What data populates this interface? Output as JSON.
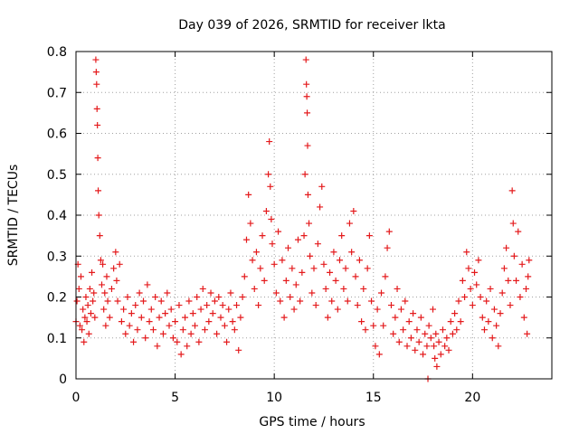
{
  "chart_data": {
    "type": "scatter",
    "title": "Day 039 of 2026, SRMTID for receiver lkta",
    "xlabel": "GPS time / hours",
    "ylabel": "SRMTID / TECUs",
    "xlim": [
      0,
      24
    ],
    "ylim": [
      0,
      0.8
    ],
    "xticks": [
      0,
      5,
      10,
      15,
      20
    ],
    "xtick_labels": [
      "0",
      "5",
      "10",
      "15",
      "20"
    ],
    "yticks": [
      0,
      0.1,
      0.2,
      0.3,
      0.4,
      0.5,
      0.6,
      0.7,
      0.8
    ],
    "ytick_labels": [
      "0",
      "0.1",
      "0.2",
      "0.3",
      "0.4",
      "0.5",
      "0.6",
      "0.7",
      "0.8"
    ],
    "grid": true,
    "marker": "+",
    "color": "#e41a1c",
    "series": [
      {
        "name": "SRMTID",
        "points": [
          [
            0.0,
            0.14
          ],
          [
            0.05,
            0.19
          ],
          [
            0.1,
            0.28
          ],
          [
            0.15,
            0.22
          ],
          [
            0.2,
            0.13
          ],
          [
            0.25,
            0.25
          ],
          [
            0.3,
            0.12
          ],
          [
            0.35,
            0.17
          ],
          [
            0.4,
            0.09
          ],
          [
            0.45,
            0.15
          ],
          [
            0.5,
            0.2
          ],
          [
            0.55,
            0.14
          ],
          [
            0.6,
            0.18
          ],
          [
            0.65,
            0.11
          ],
          [
            0.7,
            0.22
          ],
          [
            0.75,
            0.16
          ],
          [
            0.8,
            0.26
          ],
          [
            0.85,
            0.19
          ],
          [
            0.9,
            0.21
          ],
          [
            0.95,
            0.15
          ],
          [
            1.0,
            0.78
          ],
          [
            1.02,
            0.75
          ],
          [
            1.04,
            0.72
          ],
          [
            1.06,
            0.66
          ],
          [
            1.08,
            0.62
          ],
          [
            1.1,
            0.54
          ],
          [
            1.12,
            0.46
          ],
          [
            1.15,
            0.4
          ],
          [
            1.2,
            0.35
          ],
          [
            1.25,
            0.29
          ],
          [
            1.3,
            0.23
          ],
          [
            1.35,
            0.28
          ],
          [
            1.4,
            0.17
          ],
          [
            1.45,
            0.21
          ],
          [
            1.5,
            0.13
          ],
          [
            1.55,
            0.25
          ],
          [
            1.6,
            0.19
          ],
          [
            1.7,
            0.15
          ],
          [
            1.8,
            0.22
          ],
          [
            1.9,
            0.27
          ],
          [
            2.0,
            0.31
          ],
          [
            2.05,
            0.24
          ],
          [
            2.1,
            0.19
          ],
          [
            2.2,
            0.28
          ],
          [
            2.3,
            0.14
          ],
          [
            2.4,
            0.17
          ],
          [
            2.5,
            0.11
          ],
          [
            2.6,
            0.2
          ],
          [
            2.7,
            0.13
          ],
          [
            2.8,
            0.16
          ],
          [
            2.9,
            0.09
          ],
          [
            3.0,
            0.18
          ],
          [
            3.1,
            0.12
          ],
          [
            3.2,
            0.21
          ],
          [
            3.3,
            0.15
          ],
          [
            3.4,
            0.19
          ],
          [
            3.5,
            0.1
          ],
          [
            3.6,
            0.23
          ],
          [
            3.7,
            0.14
          ],
          [
            3.8,
            0.17
          ],
          [
            3.9,
            0.12
          ],
          [
            4.0,
            0.2
          ],
          [
            4.1,
            0.08
          ],
          [
            4.2,
            0.15
          ],
          [
            4.3,
            0.19
          ],
          [
            4.4,
            0.11
          ],
          [
            4.5,
            0.16
          ],
          [
            4.6,
            0.21
          ],
          [
            4.7,
            0.13
          ],
          [
            4.8,
            0.17
          ],
          [
            4.9,
            0.1
          ],
          [
            5.0,
            0.14
          ],
          [
            5.1,
            0.09
          ],
          [
            5.2,
            0.18
          ],
          [
            5.3,
            0.06
          ],
          [
            5.4,
            0.12
          ],
          [
            5.5,
            0.15
          ],
          [
            5.6,
            0.08
          ],
          [
            5.7,
            0.19
          ],
          [
            5.8,
            0.11
          ],
          [
            5.9,
            0.16
          ],
          [
            6.0,
            0.13
          ],
          [
            6.1,
            0.2
          ],
          [
            6.2,
            0.09
          ],
          [
            6.3,
            0.17
          ],
          [
            6.4,
            0.22
          ],
          [
            6.5,
            0.12
          ],
          [
            6.6,
            0.18
          ],
          [
            6.7,
            0.14
          ],
          [
            6.8,
            0.21
          ],
          [
            6.9,
            0.16
          ],
          [
            7.0,
            0.19
          ],
          [
            7.1,
            0.11
          ],
          [
            7.2,
            0.2
          ],
          [
            7.3,
            0.15
          ],
          [
            7.4,
            0.18
          ],
          [
            7.5,
            0.13
          ],
          [
            7.6,
            0.09
          ],
          [
            7.7,
            0.17
          ],
          [
            7.8,
            0.21
          ],
          [
            7.9,
            0.14
          ],
          [
            8.0,
            0.12
          ],
          [
            8.1,
            0.18
          ],
          [
            8.2,
            0.07
          ],
          [
            8.3,
            0.15
          ],
          [
            8.4,
            0.2
          ],
          [
            8.5,
            0.25
          ],
          [
            8.6,
            0.34
          ],
          [
            8.7,
            0.45
          ],
          [
            8.8,
            0.38
          ],
          [
            8.9,
            0.29
          ],
          [
            9.0,
            0.22
          ],
          [
            9.1,
            0.31
          ],
          [
            9.2,
            0.18
          ],
          [
            9.3,
            0.27
          ],
          [
            9.4,
            0.35
          ],
          [
            9.5,
            0.24
          ],
          [
            9.6,
            0.41
          ],
          [
            9.7,
            0.5
          ],
          [
            9.75,
            0.58
          ],
          [
            9.8,
            0.47
          ],
          [
            9.85,
            0.39
          ],
          [
            9.9,
            0.33
          ],
          [
            10.0,
            0.28
          ],
          [
            10.1,
            0.21
          ],
          [
            10.2,
            0.36
          ],
          [
            10.3,
            0.19
          ],
          [
            10.4,
            0.29
          ],
          [
            10.5,
            0.15
          ],
          [
            10.6,
            0.24
          ],
          [
            10.7,
            0.32
          ],
          [
            10.8,
            0.2
          ],
          [
            10.9,
            0.27
          ],
          [
            11.0,
            0.17
          ],
          [
            11.1,
            0.23
          ],
          [
            11.2,
            0.34
          ],
          [
            11.3,
            0.19
          ],
          [
            11.4,
            0.26
          ],
          [
            11.5,
            0.35
          ],
          [
            11.55,
            0.5
          ],
          [
            11.6,
            0.78
          ],
          [
            11.62,
            0.72
          ],
          [
            11.64,
            0.69
          ],
          [
            11.66,
            0.65
          ],
          [
            11.68,
            0.57
          ],
          [
            11.7,
            0.45
          ],
          [
            11.75,
            0.38
          ],
          [
            11.8,
            0.3
          ],
          [
            11.9,
            0.21
          ],
          [
            12.0,
            0.27
          ],
          [
            12.1,
            0.18
          ],
          [
            12.2,
            0.33
          ],
          [
            12.3,
            0.42
          ],
          [
            12.4,
            0.47
          ],
          [
            12.5,
            0.28
          ],
          [
            12.6,
            0.22
          ],
          [
            12.7,
            0.15
          ],
          [
            12.8,
            0.26
          ],
          [
            12.9,
            0.19
          ],
          [
            13.0,
            0.31
          ],
          [
            13.1,
            0.24
          ],
          [
            13.2,
            0.17
          ],
          [
            13.3,
            0.29
          ],
          [
            13.4,
            0.35
          ],
          [
            13.5,
            0.22
          ],
          [
            13.6,
            0.27
          ],
          [
            13.7,
            0.19
          ],
          [
            13.8,
            0.38
          ],
          [
            13.9,
            0.31
          ],
          [
            14.0,
            0.41
          ],
          [
            14.1,
            0.25
          ],
          [
            14.2,
            0.18
          ],
          [
            14.3,
            0.29
          ],
          [
            14.4,
            0.14
          ],
          [
            14.5,
            0.22
          ],
          [
            14.6,
            0.12
          ],
          [
            14.7,
            0.27
          ],
          [
            14.8,
            0.35
          ],
          [
            14.9,
            0.19
          ],
          [
            15.0,
            0.13
          ],
          [
            15.1,
            0.08
          ],
          [
            15.2,
            0.17
          ],
          [
            15.3,
            0.06
          ],
          [
            15.4,
            0.21
          ],
          [
            15.5,
            0.13
          ],
          [
            15.6,
            0.25
          ],
          [
            15.7,
            0.32
          ],
          [
            15.8,
            0.36
          ],
          [
            15.9,
            0.18
          ],
          [
            16.0,
            0.11
          ],
          [
            16.1,
            0.15
          ],
          [
            16.2,
            0.22
          ],
          [
            16.3,
            0.09
          ],
          [
            16.4,
            0.17
          ],
          [
            16.5,
            0.12
          ],
          [
            16.6,
            0.19
          ],
          [
            16.7,
            0.08
          ],
          [
            16.8,
            0.14
          ],
          [
            16.9,
            0.1
          ],
          [
            17.0,
            0.16
          ],
          [
            17.1,
            0.07
          ],
          [
            17.2,
            0.12
          ],
          [
            17.3,
            0.09
          ],
          [
            17.4,
            0.15
          ],
          [
            17.5,
            0.06
          ],
          [
            17.6,
            0.11
          ],
          [
            17.7,
            0.08
          ],
          [
            17.75,
            0.0
          ],
          [
            17.8,
            0.13
          ],
          [
            17.9,
            0.1
          ],
          [
            18.0,
            0.17
          ],
          [
            18.05,
            0.08
          ],
          [
            18.1,
            0.05
          ],
          [
            18.15,
            0.11
          ],
          [
            18.2,
            0.03
          ],
          [
            18.3,
            0.09
          ],
          [
            18.4,
            0.06
          ],
          [
            18.5,
            0.12
          ],
          [
            18.6,
            0.08
          ],
          [
            18.7,
            0.1
          ],
          [
            18.8,
            0.07
          ],
          [
            18.9,
            0.14
          ],
          [
            19.0,
            0.11
          ],
          [
            19.1,
            0.16
          ],
          [
            19.2,
            0.12
          ],
          [
            19.3,
            0.19
          ],
          [
            19.4,
            0.14
          ],
          [
            19.5,
            0.24
          ],
          [
            19.6,
            0.2
          ],
          [
            19.7,
            0.31
          ],
          [
            19.8,
            0.27
          ],
          [
            19.9,
            0.22
          ],
          [
            20.0,
            0.18
          ],
          [
            20.1,
            0.26
          ],
          [
            20.2,
            0.23
          ],
          [
            20.3,
            0.29
          ],
          [
            20.4,
            0.2
          ],
          [
            20.5,
            0.15
          ],
          [
            20.6,
            0.12
          ],
          [
            20.7,
            0.19
          ],
          [
            20.8,
            0.14
          ],
          [
            20.9,
            0.22
          ],
          [
            21.0,
            0.1
          ],
          [
            21.1,
            0.17
          ],
          [
            21.2,
            0.13
          ],
          [
            21.3,
            0.08
          ],
          [
            21.4,
            0.16
          ],
          [
            21.5,
            0.21
          ],
          [
            21.6,
            0.27
          ],
          [
            21.7,
            0.32
          ],
          [
            21.8,
            0.24
          ],
          [
            21.9,
            0.18
          ],
          [
            22.0,
            0.46
          ],
          [
            22.05,
            0.38
          ],
          [
            22.1,
            0.3
          ],
          [
            22.2,
            0.24
          ],
          [
            22.3,
            0.36
          ],
          [
            22.4,
            0.2
          ],
          [
            22.5,
            0.28
          ],
          [
            22.6,
            0.15
          ],
          [
            22.7,
            0.22
          ],
          [
            22.75,
            0.11
          ],
          [
            22.8,
            0.25
          ],
          [
            22.85,
            0.29
          ]
        ]
      }
    ]
  }
}
